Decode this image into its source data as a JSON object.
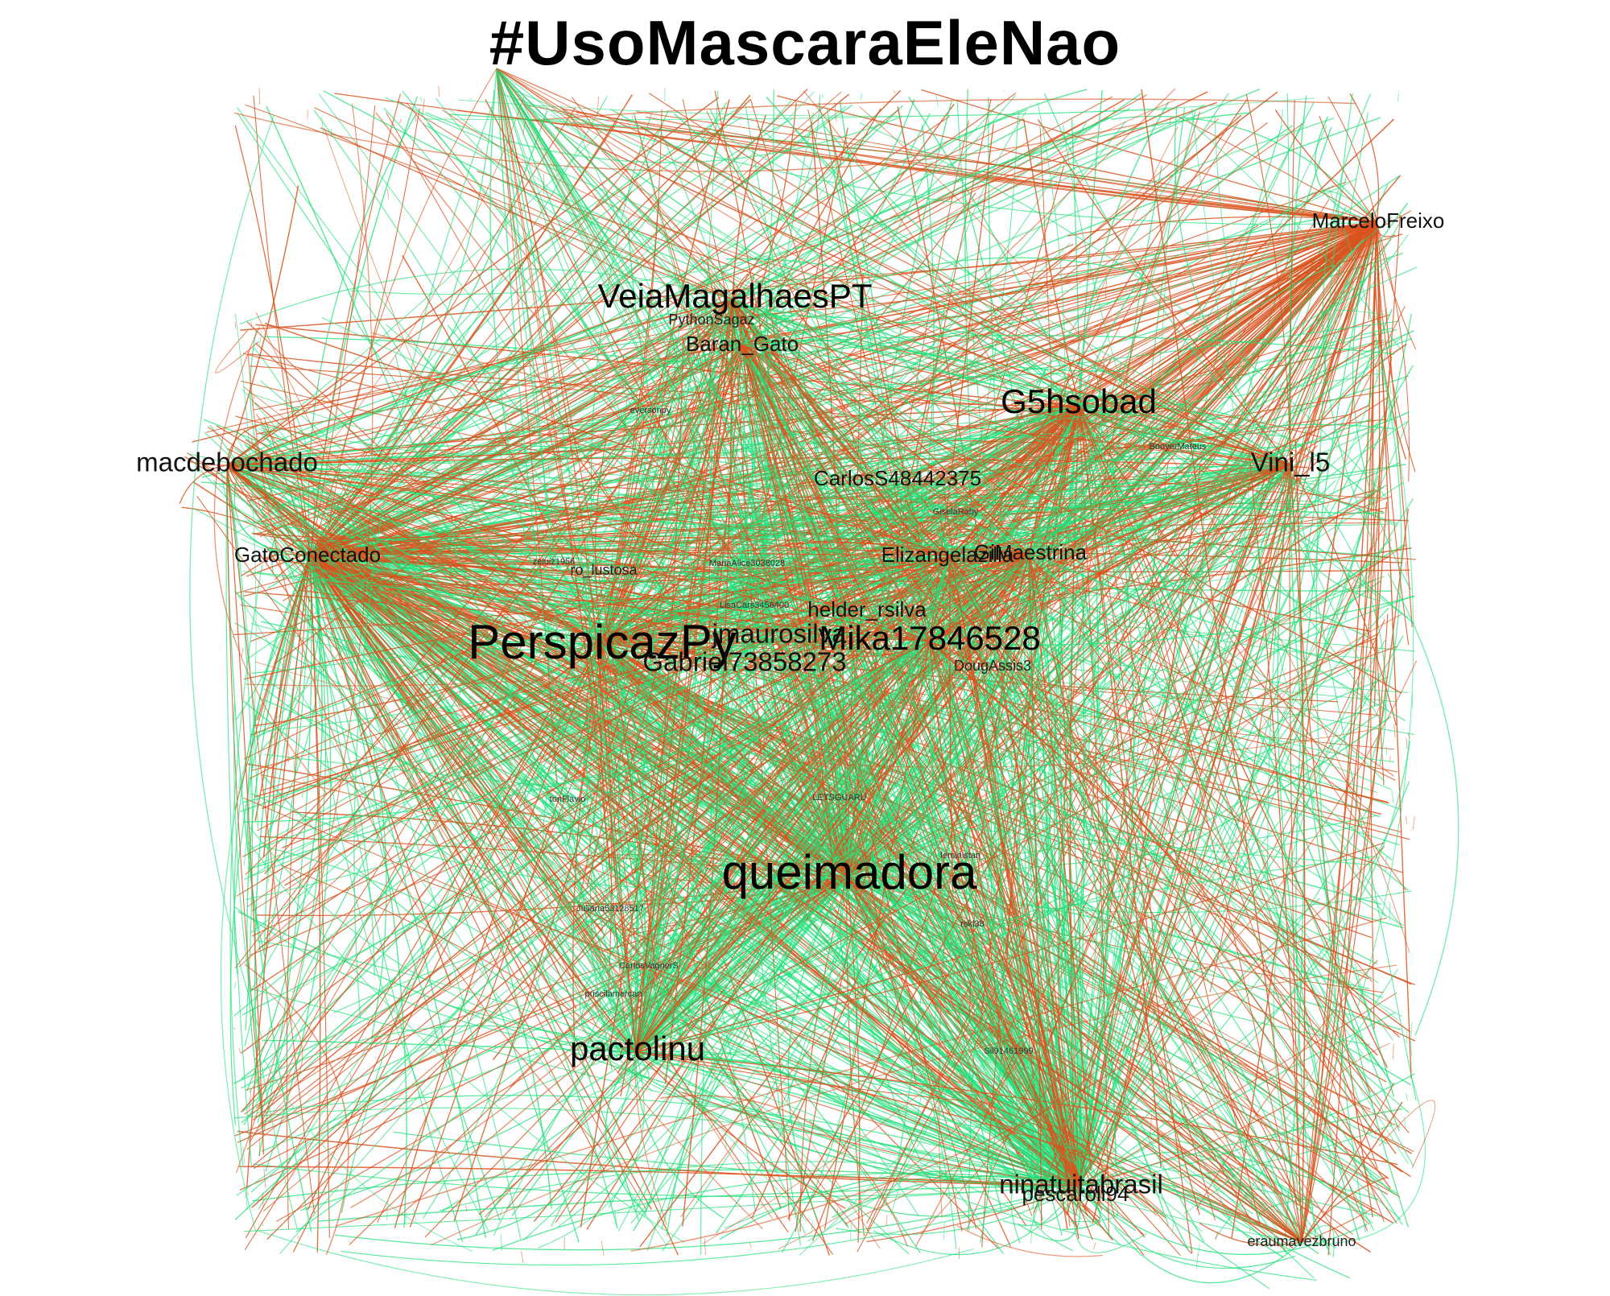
{
  "title": "#UsoMascaraEleNao",
  "colors": {
    "edge_green": "#22e07a",
    "edge_orange": "#d9531e",
    "background": "#ffffff",
    "label": "#000000"
  },
  "nodes": [
    {
      "id": "PerspicazPy",
      "label": "PerspicazPy",
      "size": "xl"
    },
    {
      "id": "queimadora",
      "label": "queimadora",
      "size": "xl"
    },
    {
      "id": "VeiaMagalhaesPT",
      "label": "VeiaMagalhaesPT",
      "size": "l"
    },
    {
      "id": "G5hsobad",
      "label": "G5hsobad",
      "size": "l"
    },
    {
      "id": "Mika17846528",
      "label": "Mika17846528",
      "size": "l"
    },
    {
      "id": "pactolinu",
      "label": "pactolinu",
      "size": "l"
    },
    {
      "id": "macdebochado",
      "label": "macdebochado",
      "size": "m"
    },
    {
      "id": "Vini_l5",
      "label": "Vini_l5",
      "size": "m"
    },
    {
      "id": "Gabriel73858273",
      "label": "Gabriel73858273",
      "size": "m"
    },
    {
      "id": "jmaurosilva",
      "label": "jmaurosilva",
      "size": "m"
    },
    {
      "id": "ninatuitabrasil",
      "label": "ninatuitabrasil",
      "size": "m"
    },
    {
      "id": "MarceloFreixo",
      "label": "MarceloFreixo",
      "size": "s"
    },
    {
      "id": "GatoConectado",
      "label": "GatoConectado",
      "size": "s"
    },
    {
      "id": "GiMaestrina",
      "label": "GiMaestrina",
      "size": "s"
    },
    {
      "id": "helder_rsilva",
      "label": "helder_rsilva",
      "size": "s"
    },
    {
      "id": "Baran_Gato",
      "label": "Baran_Gato",
      "size": "s"
    },
    {
      "id": "CarlosS48442375",
      "label": "CarlosS48442375",
      "size": "s"
    },
    {
      "id": "Elizangelazilla",
      "label": "Elizangelazilla",
      "size": "s"
    },
    {
      "id": "pescaroli94",
      "label": "pescaroli94",
      "size": "s"
    },
    {
      "id": "eraumavezbruno",
      "label": "eraumavezbruno",
      "size": "xs"
    },
    {
      "id": "PythonSagaz",
      "label": "PythonSagaz",
      "size": "xs"
    },
    {
      "id": "DougAssis3",
      "label": "DougAssis3",
      "size": "xs"
    },
    {
      "id": "ro_lustosa",
      "label": "ro_lustosa",
      "size": "xs"
    },
    {
      "id": "eversonpy",
      "label": "eversonpy",
      "size": "xxs"
    },
    {
      "id": "LETSGUARU",
      "label": "LETSGUARU",
      "size": "xxs"
    },
    {
      "id": "CarlosVagnerS",
      "label": "CarlosVagnerS",
      "size": "xxs"
    },
    {
      "id": "feministan",
      "label": "feministan",
      "size": "xxs"
    },
    {
      "id": "rskl38",
      "label": "rskl38",
      "size": "xxs"
    },
    {
      "id": "Sil91461999",
      "label": "Sil91461999",
      "size": "xxs"
    },
    {
      "id": "zeluiz1956",
      "label": "zeluiz1956",
      "size": "xxs"
    },
    {
      "id": "priscilamercan",
      "label": "priscilamercan",
      "size": "xxs"
    },
    {
      "id": "Juliana53128517",
      "label": "Juliana53128517",
      "size": "xxs"
    },
    {
      "id": "GiselaRaby",
      "label": "GiselaRaby",
      "size": "xxs"
    },
    {
      "id": "BooyerMateus",
      "label": "BooyerMateus",
      "size": "xxs"
    },
    {
      "id": "LisaCars3456400",
      "label": "LisaCars3456400",
      "size": "xxs"
    },
    {
      "id": "MariaAlice",
      "label": "MariaAlice3038028",
      "size": "xxs"
    },
    {
      "id": "tonFlavio",
      "label": "tonFlavio",
      "size": "xxs"
    }
  ]
}
